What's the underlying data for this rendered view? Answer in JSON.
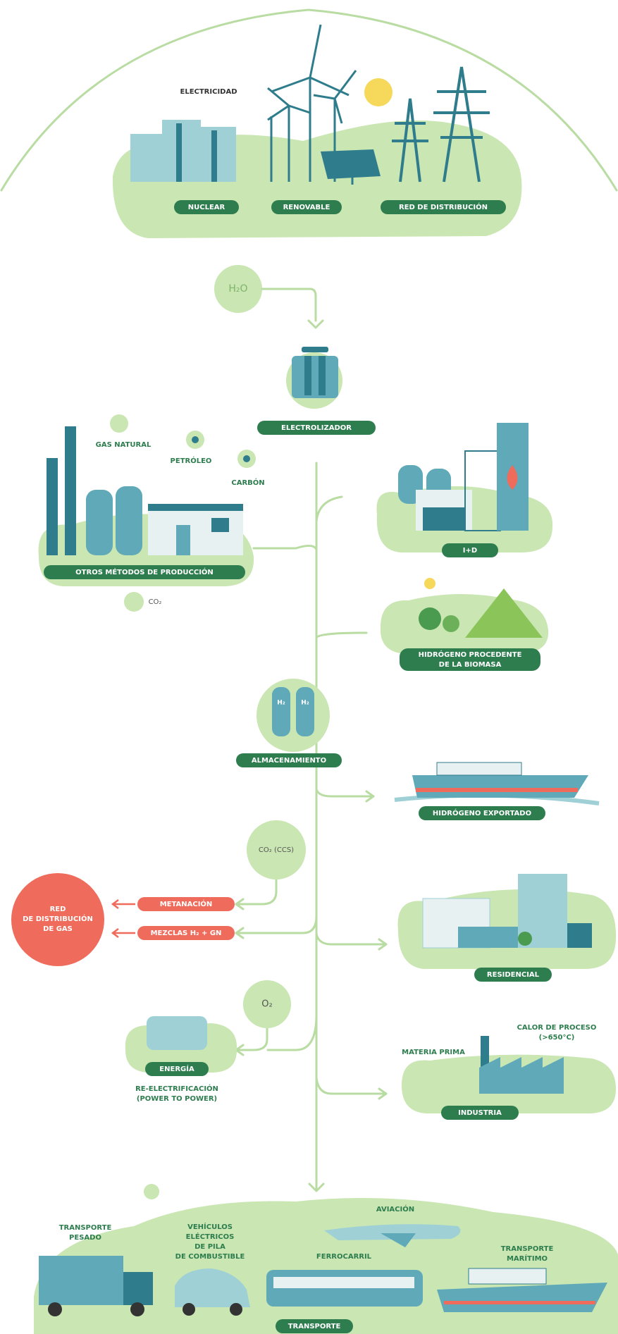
{
  "electricity": {
    "title": "ELECTRICIDAD",
    "sources": [
      "NUCLEAR",
      "RENOVABLE",
      "RED DE DISTRIBUCIÓN"
    ]
  },
  "water": "H₂O",
  "electrolyzer": "ELECTROLIZADOR",
  "other_production": {
    "fuels": [
      "GAS NATURAL",
      "PETRÓLEO",
      "CARBÓN"
    ],
    "label": "OTROS MÉTODOS DE PRODUCCIÓN",
    "emission": "CO₂"
  },
  "rd": "I+D",
  "biomass": [
    "HIDRÓGENO PROCEDENTE",
    "DE LA BIOMASA"
  ],
  "storage": {
    "label": "ALMACENAMIENTO",
    "tanks": [
      "H₂",
      "H₂"
    ]
  },
  "export": "HIDRÓGENO EXPORTADO",
  "ccs": "CO₂ (CCS)",
  "gas_grid": {
    "label": [
      "RED",
      "DE DISTRIBUCIÓN",
      "DE GAS"
    ],
    "inputs": [
      "METANACIÓN",
      "MEZCLAS H₂ + GN"
    ]
  },
  "residential": "RESIDENCIAL",
  "oxygen": "O₂",
  "energy": {
    "label": "ENERGÍA",
    "caption": [
      "RE-ELECTRIFICACIÓN",
      "(POWER TO POWER)"
    ]
  },
  "industry": {
    "label": "INDUSTRIA",
    "raw_material": "MATERIA PRIMA",
    "process_heat": [
      "CALOR DE PROCESO",
      "(>650°C)"
    ]
  },
  "transport": {
    "label": "TRANSPORTE",
    "aviation": "AVIACIÓN",
    "heavy": [
      "TRANSPORTE",
      "PESADO"
    ],
    "fcev": [
      "VEHÍCULOS",
      "ELÉCTRICOS",
      "DE PILA",
      "DE COMBUSTIBLE"
    ],
    "rail": "FERROCARRIL",
    "maritime": [
      "TRANSPORTE",
      "MARÍTIMO"
    ]
  }
}
